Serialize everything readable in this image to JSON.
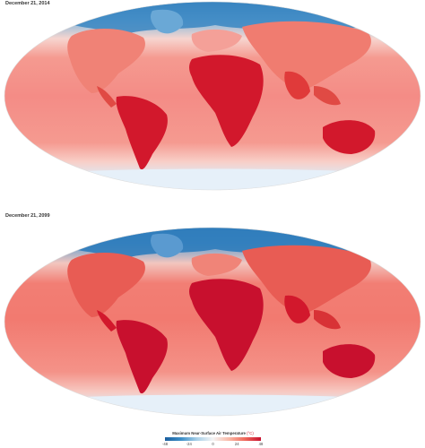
{
  "maps": [
    {
      "date_label": "December 21, 2014"
    },
    {
      "date_label": "December 21, 2099"
    }
  ],
  "legend": {
    "title": "Maximum Near-Surface Air Temperature",
    "unit": "(°C)",
    "ticks": [
      "-48",
      "-24",
      "0",
      "24",
      "48"
    ],
    "range": [
      -48,
      48
    ],
    "colors": [
      "#1a5e9e",
      "#3d8fc8",
      "#a7cfe8",
      "#f4f4f4",
      "#f9b8a6",
      "#f06a5c",
      "#c8102e"
    ]
  },
  "palette": {
    "ocean_warm": "#f48c86",
    "land_hot": "#d2182c",
    "polar_cold": "#2a75b3",
    "ice_white": "#eef5fb"
  }
}
